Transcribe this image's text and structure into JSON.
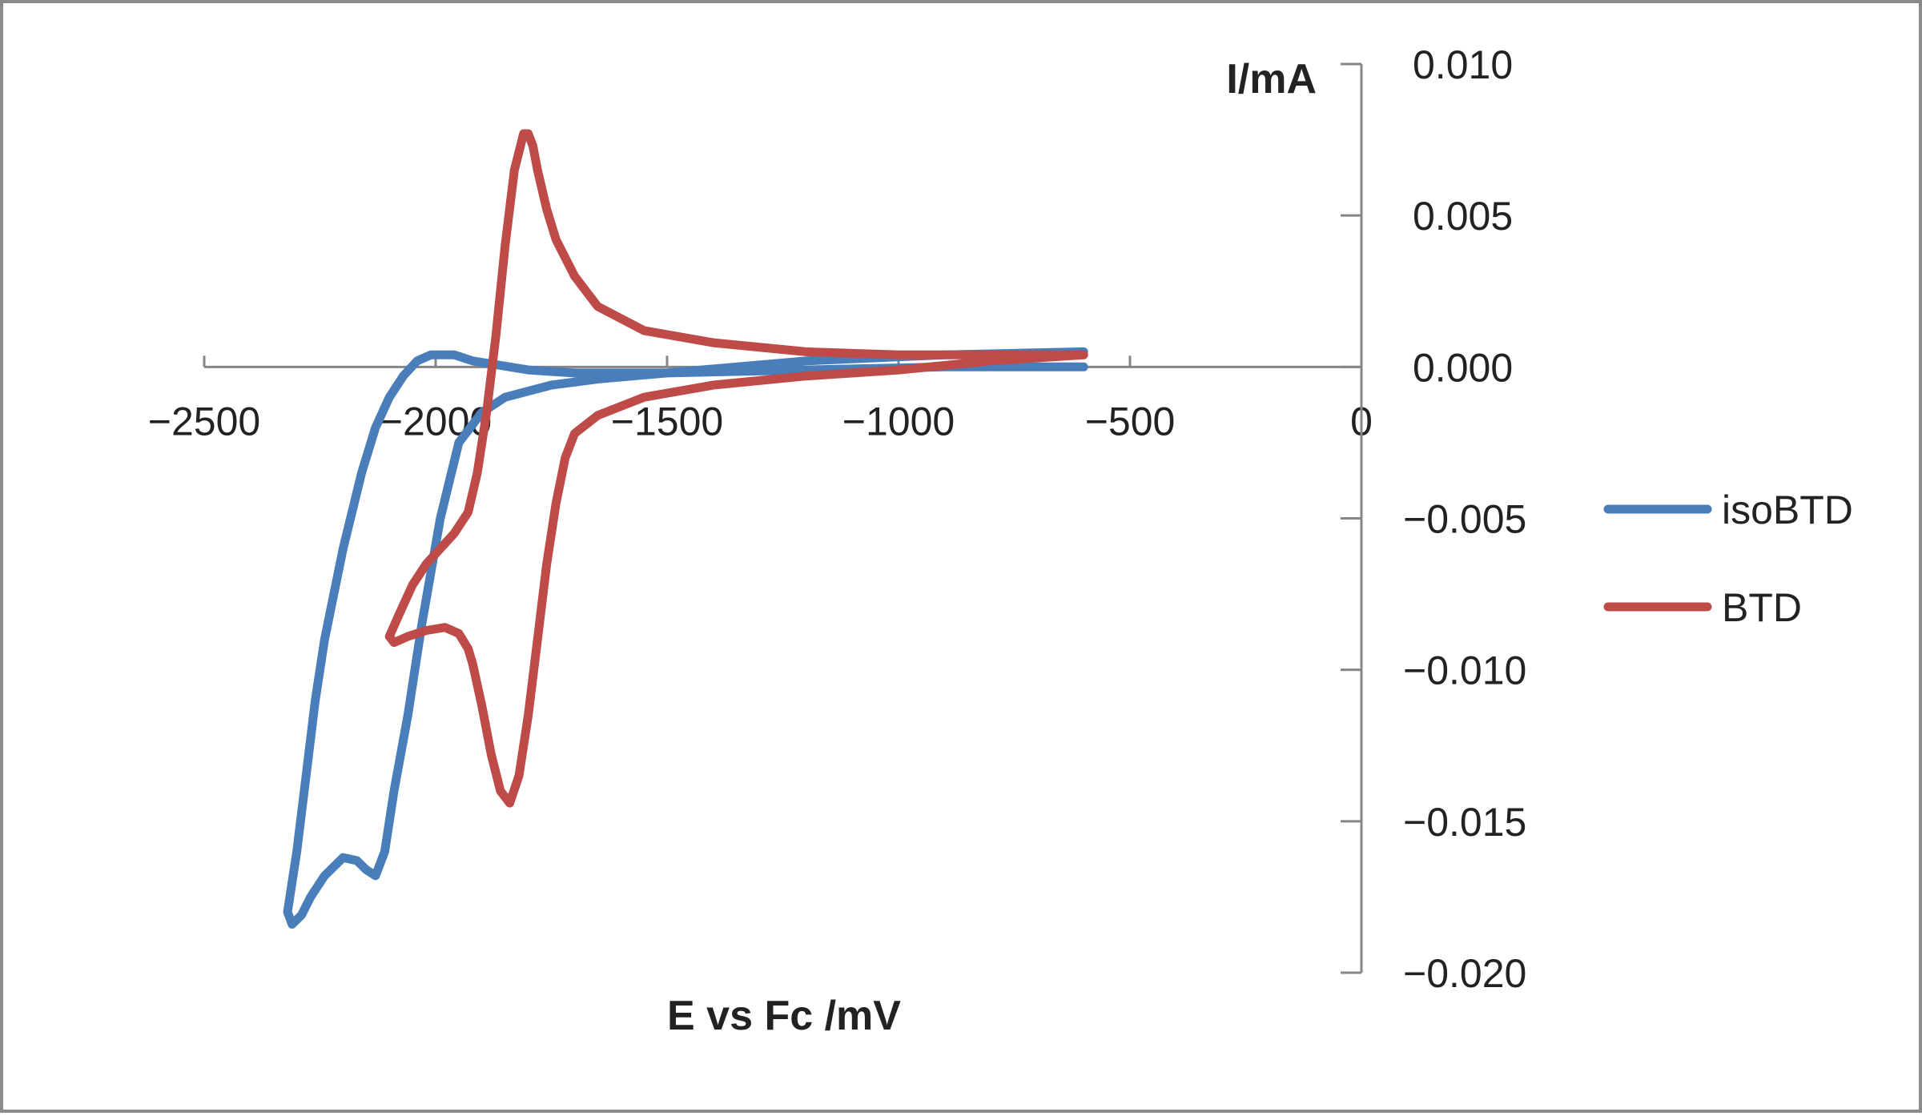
{
  "chart_data": {
    "type": "line",
    "title": "",
    "xlabel": "E vs Fc /mV",
    "ylabel": "I/mA",
    "xlim": [
      -2500,
      0
    ],
    "ylim": [
      -0.02,
      0.01
    ],
    "x_ticks": [
      "−2500",
      "−2000",
      "−1500",
      "−1000",
      "−500",
      "0"
    ],
    "y_ticks": [
      "0.010",
      "0.005",
      "0.000",
      "−0.005",
      "−0.010",
      "−0.015",
      "−0.020"
    ],
    "grid": false,
    "legend_position": "right",
    "series": [
      {
        "name": "isoBTD",
        "color": "#4a7ebb",
        "x": [
          -600,
          -900,
          -1200,
          -1500,
          -1650,
          -1750,
          -1850,
          -1900,
          -1950,
          -1990,
          -2030,
          -2060,
          -2090,
          -2110,
          -2130,
          -2150,
          -2170,
          -2200,
          -2240,
          -2270,
          -2290,
          -2310,
          -2320,
          -2300,
          -2280,
          -2260,
          -2240,
          -2200,
          -2160,
          -2130,
          -2100,
          -2070,
          -2040,
          -2010,
          -1980,
          -1960,
          -1940,
          -1920,
          -1880,
          -1800,
          -1700,
          -1500,
          -1200,
          -900,
          -600
        ],
        "y": [
          0.0005,
          0.0004,
          0.0002,
          -0.0002,
          -0.0004,
          -0.0006,
          -0.001,
          -0.0015,
          -0.0025,
          -0.005,
          -0.0085,
          -0.0115,
          -0.014,
          -0.016,
          -0.0168,
          -0.0166,
          -0.0163,
          -0.0162,
          -0.0168,
          -0.0175,
          -0.0181,
          -0.0184,
          -0.018,
          -0.016,
          -0.0135,
          -0.011,
          -0.009,
          -0.006,
          -0.0035,
          -0.002,
          -0.001,
          -0.0003,
          0.0002,
          0.0004,
          0.0004,
          0.0004,
          0.0003,
          0.0002,
          0.0001,
          -0.0001,
          -0.0002,
          -0.0002,
          -0.0001,
          0.0,
          0.0
        ]
      },
      {
        "name": "BTD",
        "color": "#be4b48",
        "x": [
          -600,
          -800,
          -1000,
          -1200,
          -1400,
          -1550,
          -1650,
          -1700,
          -1720,
          -1740,
          -1760,
          -1780,
          -1800,
          -1820,
          -1840,
          -1860,
          -1880,
          -1890,
          -1900,
          -1910,
          -1920,
          -1930,
          -1950,
          -1980,
          -2020,
          -2060,
          -2090,
          -2100,
          -2080,
          -2050,
          -2020,
          -1990,
          -1960,
          -1930,
          -1910,
          -1890,
          -1870,
          -1850,
          -1830,
          -1810,
          -1800,
          -1790,
          -1780,
          -1760,
          -1740,
          -1700,
          -1650,
          -1550,
          -1400,
          -1200,
          -1000,
          -800,
          -600
        ],
        "y": [
          0.0004,
          0.0002,
          -0.0001,
          -0.0003,
          -0.0006,
          -0.001,
          -0.0016,
          -0.0022,
          -0.003,
          -0.0045,
          -0.0065,
          -0.009,
          -0.0115,
          -0.0135,
          -0.0144,
          -0.014,
          -0.0128,
          -0.012,
          -0.0112,
          -0.0105,
          -0.0098,
          -0.0093,
          -0.0088,
          -0.0086,
          -0.0087,
          -0.0089,
          -0.0091,
          -0.0089,
          -0.0082,
          -0.0072,
          -0.0065,
          -0.006,
          -0.0055,
          -0.0048,
          -0.0035,
          -0.0015,
          0.001,
          0.004,
          0.0065,
          0.0077,
          0.0077,
          0.0073,
          0.0065,
          0.0052,
          0.0042,
          0.003,
          0.002,
          0.0012,
          0.0008,
          0.0005,
          0.0004,
          0.0004,
          0.0004
        ]
      }
    ]
  }
}
